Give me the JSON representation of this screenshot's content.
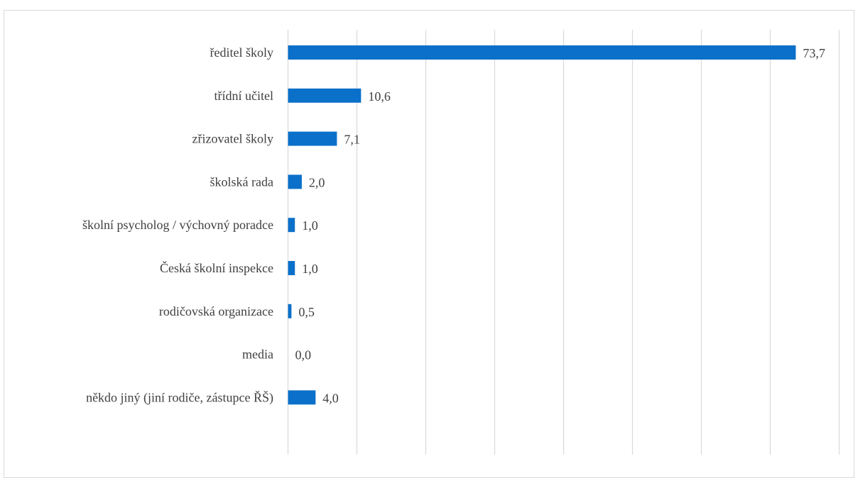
{
  "chart_data": {
    "type": "bar",
    "orientation": "horizontal",
    "categories": [
      "ředitel školy",
      "třídní učitel",
      "zřizovatel školy",
      "školská rada",
      "školní psycholog / výchovný poradce",
      "Česká školní inspekce",
      "rodičovská organizace",
      "media",
      "někdo jiný (jiní rodiče, zástupce ŘŠ)"
    ],
    "values": [
      73.7,
      10.6,
      7.1,
      2.0,
      1.0,
      1.0,
      0.5,
      0.0,
      4.0
    ],
    "value_labels": [
      "73,7",
      "10,6",
      "7,1",
      "2,0",
      "1,0",
      "1,0",
      "0,5",
      "0,0",
      "4,0"
    ],
    "xlim": [
      0,
      80
    ],
    "xticks": [
      0,
      10,
      20,
      30,
      40,
      50,
      60,
      70,
      80
    ],
    "grid": true,
    "bar_color": "#0b70c9",
    "title": "",
    "xlabel": "",
    "ylabel": ""
  }
}
